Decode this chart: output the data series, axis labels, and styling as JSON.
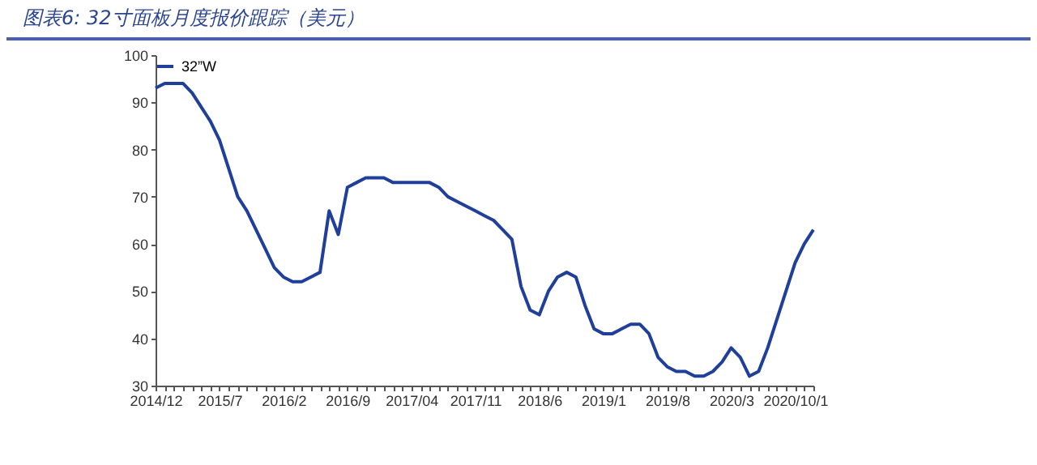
{
  "chart_data": {
    "type": "line",
    "title": "图表6:  32寸面板月度报价跟踪（美元）",
    "categories": [
      "2014/12",
      null,
      null,
      null,
      null,
      null,
      null,
      "2015/7",
      null,
      null,
      null,
      null,
      null,
      null,
      "2016/2",
      null,
      null,
      null,
      null,
      null,
      null,
      "2016/9",
      null,
      null,
      null,
      null,
      null,
      null,
      "2017/04",
      null,
      null,
      null,
      null,
      null,
      null,
      "2017/11",
      null,
      null,
      null,
      null,
      null,
      null,
      "2018/6",
      null,
      null,
      null,
      null,
      null,
      null,
      "2019/1",
      null,
      null,
      null,
      null,
      null,
      null,
      "2019/8",
      null,
      null,
      null,
      null,
      null,
      null,
      "2020/3",
      null,
      null,
      null,
      null,
      null,
      null,
      "2020/10/1",
      null,
      null
    ],
    "series": [
      {
        "name": "32”W",
        "color": "#1f3f9a",
        "values": [
          93,
          94,
          94,
          94,
          92,
          89,
          86,
          82,
          76,
          70,
          67,
          63,
          59,
          55,
          53,
          52,
          52,
          53,
          54,
          67,
          62,
          72,
          73,
          74,
          74,
          74,
          73,
          73,
          73,
          73,
          73,
          72,
          70,
          69,
          68,
          67,
          66,
          65,
          63,
          61,
          51,
          46,
          45,
          50,
          53,
          54,
          53,
          47,
          42,
          41,
          41,
          42,
          43,
          43,
          41,
          36,
          34,
          33,
          33,
          32,
          32,
          33,
          35,
          38,
          36,
          32,
          33,
          38,
          44,
          50,
          56,
          60,
          63
        ]
      }
    ],
    "ylim": [
      30,
      100
    ],
    "yticks": [
      30,
      40,
      50,
      60,
      70,
      80,
      90,
      100
    ],
    "legend": "top",
    "grid": false,
    "marker": "none",
    "line_style": "solid"
  }
}
